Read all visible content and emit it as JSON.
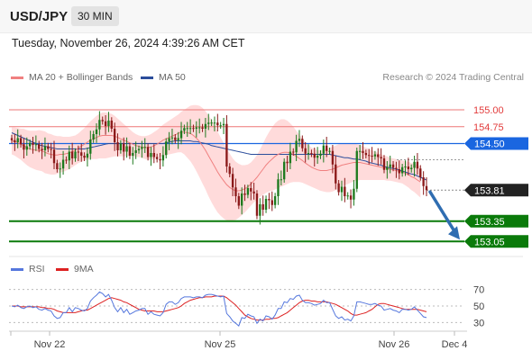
{
  "header": {
    "symbol": "USD/JPY",
    "timeframe": "30 MIN",
    "datetime": "Tuesday, November 26, 2024 4:39:26 AM CET"
  },
  "legend": {
    "ma20_label": "MA 20 + Bollinger Bands",
    "ma50_label": "MA 50",
    "ma20_color": "#f08080",
    "ma50_color": "#2b4d9b",
    "credit": "Research © 2024 Trading Central"
  },
  "osc_legend": {
    "rsi_label": "RSI",
    "ma9_label": "9MA",
    "rsi_color": "#5577dd",
    "ma9_color": "#dd2222"
  },
  "colors": {
    "up": "#1e7a1e",
    "down": "#8b1a1a",
    "band": "#ffd5d5",
    "resistance": "#ee7777",
    "pivot": "#1a66e0",
    "support": "#0a7a0a",
    "current": "#222222",
    "arrow": "#2f6db1"
  },
  "chart_data": [
    {
      "type": "candlestick",
      "title": "USD/JPY 30 MIN",
      "x_ticks": [
        "Nov 22",
        "Nov 25",
        "Nov 26",
        "Dec 4"
      ],
      "ylim": [
        152.95,
        155.2
      ],
      "levels": [
        {
          "value": 155.0,
          "label": "155.00",
          "kind": "resistance"
        },
        {
          "value": 154.75,
          "label": "154.75",
          "kind": "resistance"
        },
        {
          "value": 154.5,
          "label": "154.50",
          "kind": "pivot"
        },
        {
          "value": 153.81,
          "label": "153.81",
          "kind": "current"
        },
        {
          "value": 153.35,
          "label": "153.35",
          "kind": "support"
        },
        {
          "value": 153.05,
          "label": "153.05",
          "kind": "support"
        }
      ],
      "close": [
        154.55,
        154.52,
        154.58,
        154.49,
        154.41,
        154.46,
        154.51,
        154.48,
        154.49,
        154.42,
        154.4,
        154.46,
        154.42,
        154.41,
        154.21,
        154.12,
        154.13,
        154.26,
        154.25,
        154.38,
        154.28,
        154.38,
        154.37,
        154.32,
        154.29,
        154.35,
        154.56,
        154.64,
        154.71,
        154.85,
        154.83,
        154.76,
        154.84,
        154.72,
        154.52,
        154.4,
        154.5,
        154.38,
        154.46,
        154.32,
        154.36,
        154.4,
        154.42,
        154.45,
        154.45,
        154.3,
        154.36,
        154.3,
        154.27,
        154.25,
        154.33,
        154.53,
        154.58,
        154.59,
        154.55,
        154.58,
        154.69,
        154.73,
        154.73,
        154.73,
        154.72,
        154.74,
        154.74,
        154.72,
        154.79,
        154.81,
        154.81,
        154.81,
        154.77,
        154.77,
        154.79,
        154.16,
        154.05,
        153.85,
        153.72,
        153.58,
        153.76,
        153.74,
        153.84,
        153.79,
        153.76,
        153.43,
        153.6,
        153.52,
        153.68,
        153.66,
        153.59,
        153.72,
        153.97,
        153.97,
        154.23,
        154.21,
        154.38,
        154.37,
        154.54,
        154.57,
        154.43,
        154.35,
        154.36,
        154.35,
        154.29,
        154.32,
        154.35,
        154.47,
        154.39,
        154.39,
        154.19,
        153.91,
        153.78,
        153.86,
        153.72,
        153.73,
        153.67,
        153.83,
        154.39,
        154.39,
        154.36,
        154.33,
        154.32,
        154.31,
        154.34,
        154.3,
        154.28,
        154.11,
        154.15,
        154.19,
        154.14,
        154.12,
        154.06,
        154.15,
        154.16,
        154.12,
        154.14,
        154.23,
        154.13,
        154.0,
        153.87,
        153.81
      ],
      "ma20": [
        154.54,
        154.53,
        154.51,
        154.49,
        154.47,
        154.44,
        154.42,
        154.41,
        154.4,
        154.4,
        154.39,
        154.37,
        154.35,
        154.34,
        154.33,
        154.33,
        154.34,
        154.34,
        154.35,
        154.36,
        154.38,
        154.4,
        154.43,
        154.46,
        154.49,
        154.52,
        154.55,
        154.57,
        154.59,
        154.61,
        154.62,
        154.62,
        154.62,
        154.62,
        154.61,
        154.59,
        154.57,
        154.55,
        154.53,
        154.51,
        154.49,
        154.47,
        154.46,
        154.45,
        154.44,
        154.44,
        154.45,
        154.47,
        154.49,
        154.52,
        154.55,
        154.57,
        154.59,
        154.61,
        154.63,
        154.65,
        154.67,
        154.67,
        154.66,
        154.65,
        154.62,
        154.58,
        154.53,
        154.47,
        154.4,
        154.32,
        154.24,
        154.16,
        154.08,
        154.01,
        153.95,
        153.89,
        153.85,
        153.82,
        153.8,
        153.8,
        153.81,
        153.83,
        153.86,
        153.9,
        153.95,
        154.0,
        154.06,
        154.12,
        154.18,
        154.23,
        154.27,
        154.31,
        154.34,
        154.36,
        154.37,
        154.37,
        154.36,
        154.34,
        154.31,
        154.28,
        154.25,
        154.21,
        154.18,
        154.15,
        154.13,
        154.11,
        154.1,
        154.1,
        154.1,
        154.11,
        154.12,
        154.14,
        154.16,
        154.18,
        154.19,
        154.2,
        154.21,
        154.22,
        154.22,
        154.22,
        154.21,
        154.2,
        154.19,
        154.18,
        154.17,
        154.16,
        154.15,
        154.14,
        154.13,
        154.12,
        154.11,
        154.1,
        154.09,
        154.08,
        154.06,
        154.04,
        154.01,
        153.99,
        153.96,
        153.93
      ],
      "ma50": [
        154.66,
        154.64,
        154.62,
        154.6,
        154.58,
        154.56,
        154.54,
        154.52,
        154.5,
        154.48,
        154.47,
        154.46,
        154.45,
        154.44,
        154.43,
        154.42,
        154.42,
        154.42,
        154.42,
        154.42,
        154.42,
        154.42,
        154.42,
        154.42,
        154.42,
        154.43,
        154.44,
        154.45,
        154.46,
        154.47,
        154.48,
        154.49,
        154.5,
        154.5,
        154.5,
        154.5,
        154.5,
        154.5,
        154.5,
        154.5,
        154.5,
        154.5,
        154.5,
        154.5,
        154.5,
        154.5,
        154.5,
        154.5,
        154.5,
        154.5,
        154.5,
        154.51,
        154.52,
        154.53,
        154.54,
        154.54,
        154.54,
        154.54,
        154.54,
        154.54,
        154.53,
        154.53,
        154.52,
        154.51,
        154.5,
        154.49,
        154.47,
        154.46,
        154.45,
        154.44,
        154.43,
        154.42,
        154.41,
        154.4,
        154.39,
        154.38,
        154.37,
        154.36,
        154.35,
        154.34,
        154.34,
        154.34,
        154.34,
        154.34,
        154.34,
        154.34,
        154.34,
        154.34,
        154.34,
        154.34,
        154.34,
        154.34,
        154.34,
        154.34,
        154.34,
        154.34,
        154.34,
        154.34,
        154.34,
        154.34,
        154.34,
        154.34,
        154.34,
        154.34,
        154.34,
        154.34,
        154.33,
        154.32,
        154.31,
        154.3,
        154.29,
        154.29,
        154.28,
        154.27,
        154.27,
        154.26,
        154.25,
        154.24,
        154.22,
        154.21,
        154.2,
        154.19,
        154.18,
        154.16,
        154.15,
        154.14,
        154.13,
        154.12,
        154.11,
        154.09,
        154.08,
        154.06,
        154.05,
        154.04,
        154.02,
        154.0,
        153.98,
        153.96
      ],
      "band_width": [
        0.2,
        0.21,
        0.22,
        0.23,
        0.25,
        0.26,
        0.27,
        0.28,
        0.29,
        0.3,
        0.3,
        0.31,
        0.3,
        0.3,
        0.29,
        0.28,
        0.27,
        0.26,
        0.25,
        0.24,
        0.23,
        0.22,
        0.22,
        0.23,
        0.24,
        0.26,
        0.28,
        0.3,
        0.32,
        0.33,
        0.34,
        0.34,
        0.33,
        0.32,
        0.3,
        0.28,
        0.26,
        0.24,
        0.22,
        0.2,
        0.18,
        0.17,
        0.16,
        0.16,
        0.17,
        0.18,
        0.19,
        0.2,
        0.21,
        0.22,
        0.23,
        0.24,
        0.25,
        0.26,
        0.27,
        0.28,
        0.3,
        0.33,
        0.37,
        0.41,
        0.45,
        0.49,
        0.53,
        0.56,
        0.58,
        0.6,
        0.61,
        0.61,
        0.6,
        0.58,
        0.56,
        0.53,
        0.5,
        0.46,
        0.43,
        0.4,
        0.37,
        0.35,
        0.33,
        0.32,
        0.32,
        0.33,
        0.35,
        0.38,
        0.41,
        0.44,
        0.47,
        0.49,
        0.5,
        0.5,
        0.49,
        0.47,
        0.44,
        0.41,
        0.38,
        0.35,
        0.33,
        0.31,
        0.3,
        0.29,
        0.29,
        0.29,
        0.3,
        0.31,
        0.32,
        0.33,
        0.33,
        0.33,
        0.33,
        0.32,
        0.31,
        0.3,
        0.29,
        0.28,
        0.27,
        0.26,
        0.25,
        0.24,
        0.23,
        0.22,
        0.21,
        0.2,
        0.19,
        0.18,
        0.18,
        0.17,
        0.17,
        0.17,
        0.17,
        0.17,
        0.18,
        0.19,
        0.2,
        0.21,
        0.22,
        0.23,
        0.24,
        0.25
      ]
    },
    {
      "type": "line",
      "title": "RSI",
      "ylim": [
        25,
        75
      ],
      "y_ticks": [
        70,
        50,
        30
      ],
      "rsi": [
        50,
        49,
        51,
        48,
        47,
        49,
        50,
        48,
        49,
        46,
        45,
        47,
        45,
        44,
        38,
        35,
        36,
        42,
        42,
        48,
        43,
        48,
        47,
        45,
        44,
        47,
        56,
        60,
        63,
        67,
        65,
        61,
        64,
        57,
        48,
        43,
        48,
        42,
        46,
        40,
        42,
        44,
        45,
        47,
        47,
        40,
        43,
        40,
        39,
        38,
        42,
        52,
        55,
        55,
        52,
        54,
        59,
        61,
        61,
        61,
        60,
        61,
        61,
        60,
        63,
        64,
        64,
        63,
        62,
        61,
        62,
        41,
        37,
        32,
        29,
        26,
        36,
        35,
        40,
        38,
        37,
        29,
        34,
        32,
        38,
        37,
        34,
        39,
        47,
        47,
        55,
        54,
        59,
        58,
        62,
        63,
        57,
        54,
        54,
        53,
        51,
        52,
        53,
        57,
        54,
        54,
        46,
        38,
        35,
        37,
        33,
        34,
        32,
        38,
        55,
        55,
        54,
        53,
        52,
        52,
        53,
        51,
        50,
        45,
        46,
        47,
        45,
        44,
        42,
        46,
        46,
        45,
        46,
        49,
        45,
        41,
        37,
        36
      ],
      "ma9": [
        50,
        50,
        50,
        49,
        49,
        49,
        49,
        49,
        49,
        49,
        48,
        48,
        47,
        47,
        46,
        44,
        43,
        42,
        42,
        42,
        42,
        42,
        43,
        44,
        45,
        45,
        47,
        49,
        51,
        53,
        55,
        57,
        59,
        60,
        59,
        58,
        57,
        55,
        54,
        52,
        50,
        48,
        46,
        45,
        44,
        44,
        44,
        44,
        43,
        43,
        43,
        44,
        45,
        46,
        47,
        48,
        50,
        53,
        55,
        57,
        58,
        59,
        60,
        60,
        61,
        61,
        61,
        62,
        62,
        62,
        62,
        60,
        57,
        54,
        51,
        47,
        43,
        39,
        37,
        35,
        34,
        33,
        33,
        33,
        34,
        34,
        35,
        35,
        36,
        38,
        40,
        42,
        45,
        48,
        51,
        54,
        56,
        57,
        57,
        56,
        56,
        55,
        55,
        55,
        55,
        54,
        53,
        52,
        50,
        48,
        46,
        44,
        41,
        39,
        39,
        40,
        41,
        42,
        44,
        46,
        49,
        52,
        53,
        53,
        52,
        51,
        50,
        49,
        48,
        47,
        46,
        46,
        46,
        46,
        46,
        45,
        44,
        43
      ]
    }
  ]
}
